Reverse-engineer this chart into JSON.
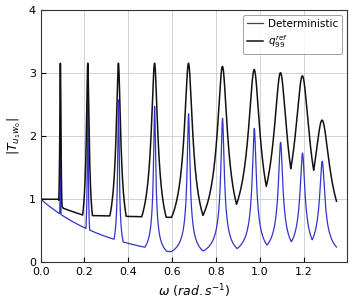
{
  "xlabel": "$\\omega \\ (rad.s^{-1})$",
  "ylabel": "$|T_{u_1 w_0}|$",
  "xlim": [
    0,
    1.4
  ],
  "ylim": [
    0,
    4
  ],
  "xticks": [
    0,
    0.2,
    0.4,
    0.6,
    0.8,
    1.0,
    1.2
  ],
  "yticks": [
    0,
    1,
    2,
    3,
    4
  ],
  "blue_color": "#3333cc",
  "black_color": "#111111",
  "legend_blue": "Deterministic",
  "legend_black": "$q_{99}^{ref}$",
  "background_color": "#ffffff",
  "figsize": [
    3.53,
    3.06
  ],
  "dpi": 100,
  "blue_zeta": 0.008,
  "black_zeta": 0.025,
  "blue_peaks": [
    0.09,
    0.215,
    0.355,
    0.52,
    0.675,
    0.83,
    0.975,
    1.095,
    1.195,
    1.285
  ],
  "blue_amps": [
    3.15,
    2.65,
    2.57,
    2.47,
    2.35,
    2.28,
    2.12,
    1.9,
    1.73,
    1.6
  ],
  "black_peaks": [
    0.09,
    0.215,
    0.355,
    0.52,
    0.675,
    0.83,
    0.975,
    1.095,
    1.195,
    1.285
  ],
  "black_amps": [
    3.15,
    3.15,
    3.15,
    3.15,
    3.15,
    3.1,
    3.05,
    3.0,
    2.95,
    2.25
  ]
}
